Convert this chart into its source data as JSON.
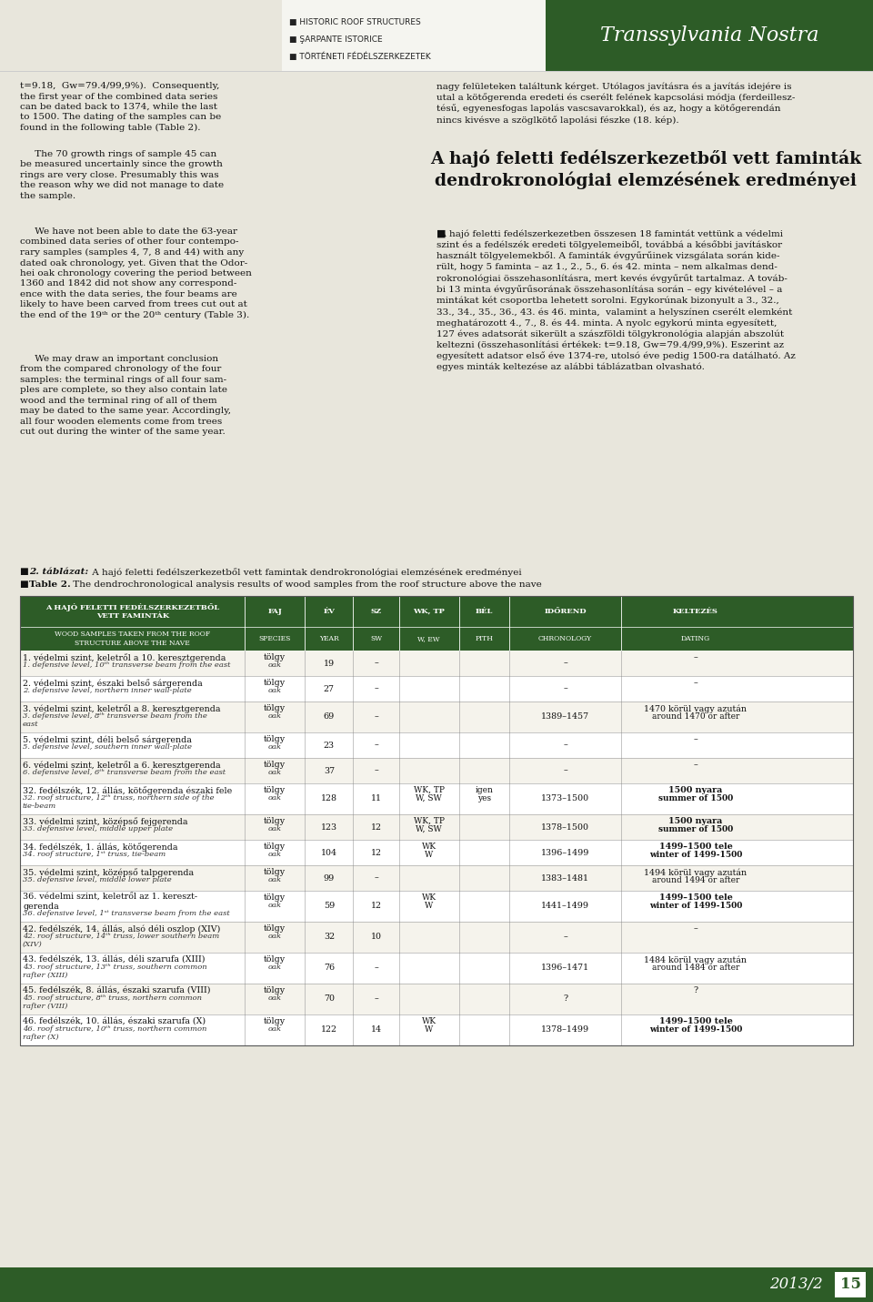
{
  "page_bg": "#e8e6dc",
  "dark_green": "#2d5c27",
  "white": "#ffffff",
  "journal_name": "Transsylvania Nostra",
  "bullet_items": [
    "HISTORIC ROOF STRUCTURES",
    "ŞARPANTE ISTORICE",
    "TÖRTÉNETI FÉDÉLSZERKEZETEK"
  ],
  "footer_text": "2013/2",
  "footer_page": "15"
}
